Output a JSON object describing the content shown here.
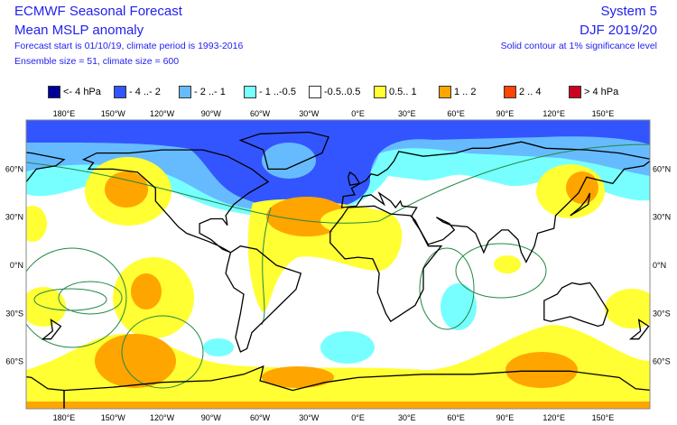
{
  "header": {
    "title": "ECMWF Seasonal Forecast",
    "subtitle": "Mean MSLP anomaly",
    "forecast_info": "Forecast start is 01/10/19, climate period is 1993-2016",
    "ensemble_info": "Ensemble size = 51, climate size = 600",
    "system": "System 5",
    "season": "DJF 2019/20",
    "significance_note": "Solid contour at 1% significance level"
  },
  "legend": [
    {
      "label": "<- 4 hPa",
      "color": "#000099"
    },
    {
      "label": "- 4 ..- 2",
      "color": "#3355ff"
    },
    {
      "label": "- 2 ..- 1",
      "color": "#66bbff"
    },
    {
      "label": "- 1 ..-0.5",
      "color": "#77ffff"
    },
    {
      "label": "-0.5..0.5",
      "color": "#ffffff"
    },
    {
      "label": "0.5.. 1",
      "color": "#ffff33"
    },
    {
      "label": "1 .. 2",
      "color": "#ffa500"
    },
    {
      "label": "2 .. 4",
      "color": "#ff4400"
    },
    {
      "label": "> 4 hPa",
      "color": "#cc0022"
    }
  ],
  "map": {
    "lon_labels": [
      "180°E",
      "150°W",
      "120°W",
      "90°W",
      "60°W",
      "30°W",
      "0°E",
      "30°E",
      "60°E",
      "90°E",
      "120°E",
      "150°E"
    ],
    "lat_labels": [
      "60°N",
      "30°N",
      "0°N",
      "30°S",
      "60°S"
    ],
    "contour_color": "#228844",
    "coastline_color": "#000000"
  }
}
